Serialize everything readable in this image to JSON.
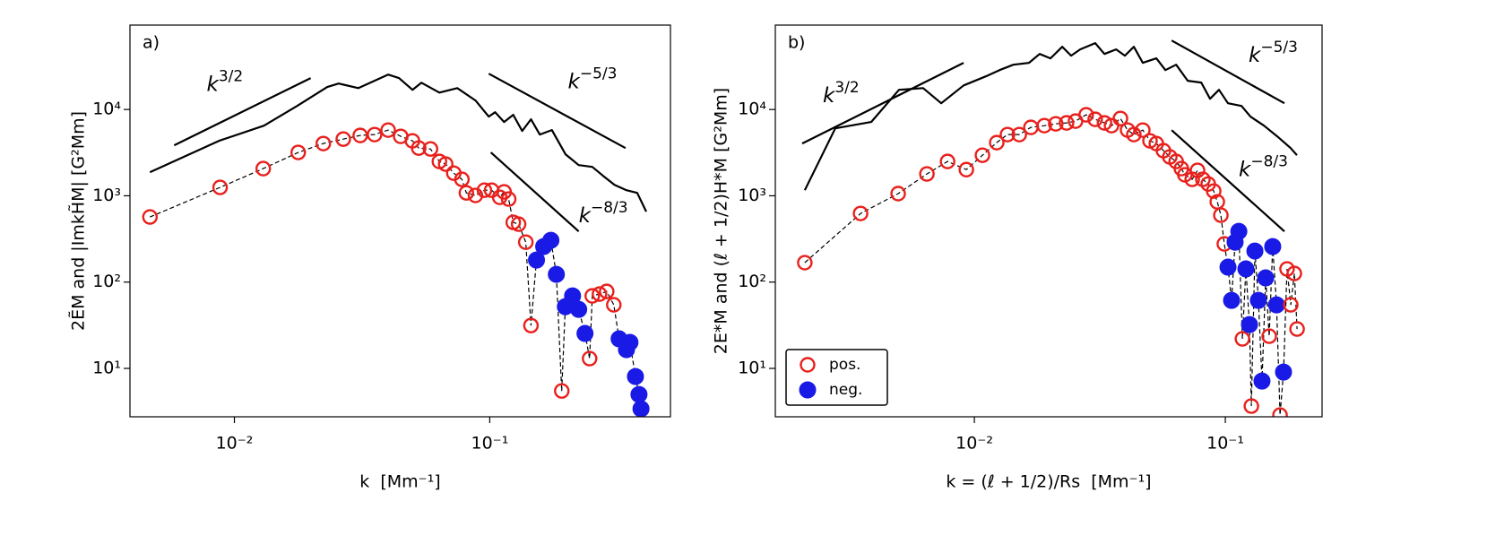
{
  "markers": [
    {
      "name": "pos.",
      "color": "#e8201c",
      "filled": false
    },
    {
      "name": "neg.",
      "color": "#1a1ae6",
      "filled": true
    }
  ],
  "chart_data": [
    {
      "type": "line",
      "label": "a)",
      "xlabel": "k  [Mm⁻¹]",
      "ylabel": "2ẼM and |ImkH̃M| [G²Mm]",
      "xscale": "log",
      "yscale": "log",
      "xlim": [
        0.0039,
        0.51
      ],
      "ylim": [
        2.75,
        95000
      ],
      "xticks": [
        {
          "value": 0.01,
          "label": "10⁻²"
        },
        {
          "value": 0.1,
          "label": "10⁻¹"
        }
      ],
      "yticks": [
        {
          "value": 10,
          "label": "10¹"
        },
        {
          "value": 100,
          "label": "10²"
        },
        {
          "value": 1000,
          "label": "10³"
        },
        {
          "value": 10000,
          "label": "10⁴"
        }
      ],
      "energy": {
        "color": "#000000",
        "x": [
          0.00467,
          0.00871,
          0.01306,
          0.0176,
          0.0231,
          0.0256,
          0.0306,
          0.04,
          0.0441,
          0.0498,
          0.054,
          0.0635,
          0.0746,
          0.0879,
          0.0991,
          0.105,
          0.1138,
          0.1236,
          0.134,
          0.145,
          0.157,
          0.175,
          0.198,
          0.223,
          0.252,
          0.278,
          0.308,
          0.343,
          0.378,
          0.41
        ],
        "values": [
          1875,
          4330,
          6500,
          11000,
          18200,
          20000,
          17700,
          25400,
          23100,
          16900,
          20400,
          15700,
          17700,
          12700,
          8270,
          9300,
          7160,
          8670,
          5640,
          7690,
          5120,
          5770,
          3030,
          2270,
          2160,
          1700,
          1340,
          1160,
          1080,
          655
        ]
      },
      "helicity": {
        "color": "#000000",
        "x": [
          0.00467,
          0.00879,
          0.01297,
          0.01778,
          0.0223,
          0.0267,
          0.0311,
          0.0354,
          0.04,
          0.0448,
          0.0498,
          0.0527,
          0.0586,
          0.0635,
          0.0672,
          0.0723,
          0.0778,
          0.081,
          0.0879,
          0.0953,
          0.1017,
          0.1094,
          0.1138,
          0.1186,
          0.1236,
          0.1297,
          0.1384,
          0.145,
          0.1524,
          0.1626,
          0.1735,
          0.1823,
          0.1914,
          0.1977,
          0.211,
          0.223,
          0.236,
          0.246,
          0.252,
          0.269,
          0.287,
          0.306,
          0.321,
          0.343,
          0.354,
          0.372,
          0.384,
          0.391
        ],
        "values": [
          568,
          1250,
          2065,
          3180,
          4030,
          4540,
          5000,
          5120,
          5770,
          4880,
          4330,
          3570,
          3490,
          2500,
          2330,
          1830,
          1550,
          1080,
          1010,
          1160,
          1160,
          960,
          1110,
          916,
          492,
          469,
          290,
          31.4,
          180,
          258,
          305,
          123,
          5.48,
          51.9,
          69.2,
          48.3,
          25.4,
          13.0,
          69.2,
          72.6,
          78,
          54.5,
          22,
          16.5,
          20,
          8.05,
          4.99,
          3.4
        ],
        "negative": [
          false,
          false,
          false,
          false,
          false,
          false,
          false,
          false,
          false,
          false,
          false,
          false,
          false,
          false,
          false,
          false,
          false,
          false,
          false,
          false,
          false,
          false,
          false,
          false,
          false,
          false,
          false,
          false,
          true,
          true,
          true,
          true,
          false,
          true,
          true,
          true,
          true,
          false,
          false,
          false,
          false,
          false,
          true,
          true,
          true,
          true,
          true,
          true
        ]
      },
      "reference_lines": [
        {
          "base": "k",
          "exponent": "3/2",
          "x": [
            0.00581,
            0.0199
          ],
          "y": [
            3845,
            23100
          ]
        },
        {
          "base": "k",
          "exponent": "−5/3",
          "x": [
            0.0991,
            0.34
          ],
          "y": [
            26000,
            3570
          ]
        },
        {
          "base": "k",
          "exponent": "−8/3",
          "x": [
            0.101,
            0.223
          ],
          "y": [
            3180,
            387
          ]
        }
      ]
    },
    {
      "type": "line",
      "label": "b)",
      "xlabel": "k = (ℓ + 1/2)/Rs  [Mm⁻¹]",
      "ylabel": "2E*M and (ℓ + 1/2)H*M [G²Mm]",
      "xscale": "log",
      "yscale": "log",
      "xlim": [
        0.00161,
        0.243
      ],
      "ylim": [
        2.75,
        95000
      ],
      "legend": "lower left",
      "xticks": [
        {
          "value": 0.01,
          "label": "10⁻²"
        },
        {
          "value": 0.1,
          "label": "10⁻¹"
        }
      ],
      "yticks": [
        {
          "value": 10,
          "label": "10¹"
        },
        {
          "value": 100,
          "label": "10²"
        },
        {
          "value": 1000,
          "label": "10³"
        },
        {
          "value": 10000,
          "label": "10⁴"
        }
      ],
      "energy": {
        "color": "#000000",
        "x": [
          0.00211,
          0.00279,
          0.00388,
          0.00501,
          0.00625,
          0.00738,
          0.00906,
          0.0111,
          0.0126,
          0.0143,
          0.0165,
          0.0182,
          0.0201,
          0.0224,
          0.0243,
          0.0264,
          0.0303,
          0.033,
          0.0367,
          0.0398,
          0.0432,
          0.0469,
          0.0531,
          0.0577,
          0.0637,
          0.0708,
          0.0802,
          0.0869,
          0.0944,
          0.1025,
          0.116,
          0.126,
          0.1426,
          0.161,
          0.182,
          0.193
        ],
        "values": [
          1160,
          6050,
          7160,
          16900,
          17700,
          11800,
          19000,
          24200,
          28600,
          33000,
          34700,
          44000,
          39100,
          53300,
          42000,
          49700,
          58700,
          44000,
          49700,
          42000,
          53300,
          34700,
          39100,
          28600,
          33000,
          21500,
          20500,
          13300,
          16900,
          11800,
          11000,
          8270,
          6500,
          4880,
          3570,
          2950
        ]
      },
      "helicity": {
        "color": "#000000",
        "x": [
          0.00211,
          0.00352,
          0.00497,
          0.00647,
          0.00782,
          0.00929,
          0.01077,
          0.01228,
          0.01355,
          0.0151,
          0.0168,
          0.019,
          0.0211,
          0.0233,
          0.0253,
          0.0279,
          0.0303,
          0.033,
          0.0352,
          0.0382,
          0.0408,
          0.0432,
          0.0469,
          0.0501,
          0.0531,
          0.0567,
          0.0601,
          0.0637,
          0.0668,
          0.069,
          0.0738,
          0.0775,
          0.0814,
          0.0855,
          0.0899,
          0.0929,
          0.096,
          0.0991,
          0.1025,
          0.1059,
          0.1094,
          0.1132,
          0.117,
          0.1208,
          0.1248,
          0.127,
          0.1312,
          0.1355,
          0.14,
          0.1448,
          0.1496,
          0.1545,
          0.16,
          0.1652,
          0.1706,
          0.1762,
          0.1823,
          0.1884,
          0.1932
        ],
        "values": [
          168,
          624,
          1060,
          1790,
          2500,
          2010,
          2950,
          4130,
          5120,
          5120,
          6200,
          6500,
          6820,
          6990,
          7330,
          8670,
          7690,
          6990,
          6500,
          7870,
          5770,
          5120,
          5770,
          4330,
          4030,
          3330,
          2820,
          2500,
          2065,
          1750,
          1550,
          1970,
          1550,
          1370,
          1135,
          851,
          596,
          277,
          149,
          61.4,
          290,
          387,
          22,
          142,
          32.2,
          3.66,
          229,
          61.4,
          7.14,
          112,
          23.6,
          258,
          54.5,
          2.88,
          9.06,
          142,
          54.5,
          126,
          28.6
        ],
        "negative": [
          false,
          false,
          false,
          false,
          false,
          false,
          false,
          false,
          false,
          false,
          false,
          false,
          false,
          false,
          false,
          false,
          false,
          false,
          false,
          false,
          false,
          false,
          false,
          false,
          false,
          false,
          false,
          false,
          false,
          false,
          false,
          false,
          false,
          false,
          false,
          false,
          false,
          false,
          true,
          true,
          true,
          true,
          false,
          true,
          true,
          false,
          true,
          true,
          true,
          true,
          false,
          true,
          true,
          false,
          true,
          false,
          false,
          false,
          false
        ]
      },
      "reference_lines": [
        {
          "base": "k",
          "exponent": "3/2",
          "x": [
            0.00206,
            0.00906
          ],
          "y": [
            4030,
            34700
          ]
        },
        {
          "base": "k",
          "exponent": "−5/3",
          "x": [
            0.0611,
            0.172
          ],
          "y": [
            63000,
            11800
          ]
        },
        {
          "base": "k",
          "exponent": "−8/3",
          "x": [
            0.0611,
            0.172
          ],
          "y": [
            5770,
            387
          ]
        }
      ]
    }
  ]
}
